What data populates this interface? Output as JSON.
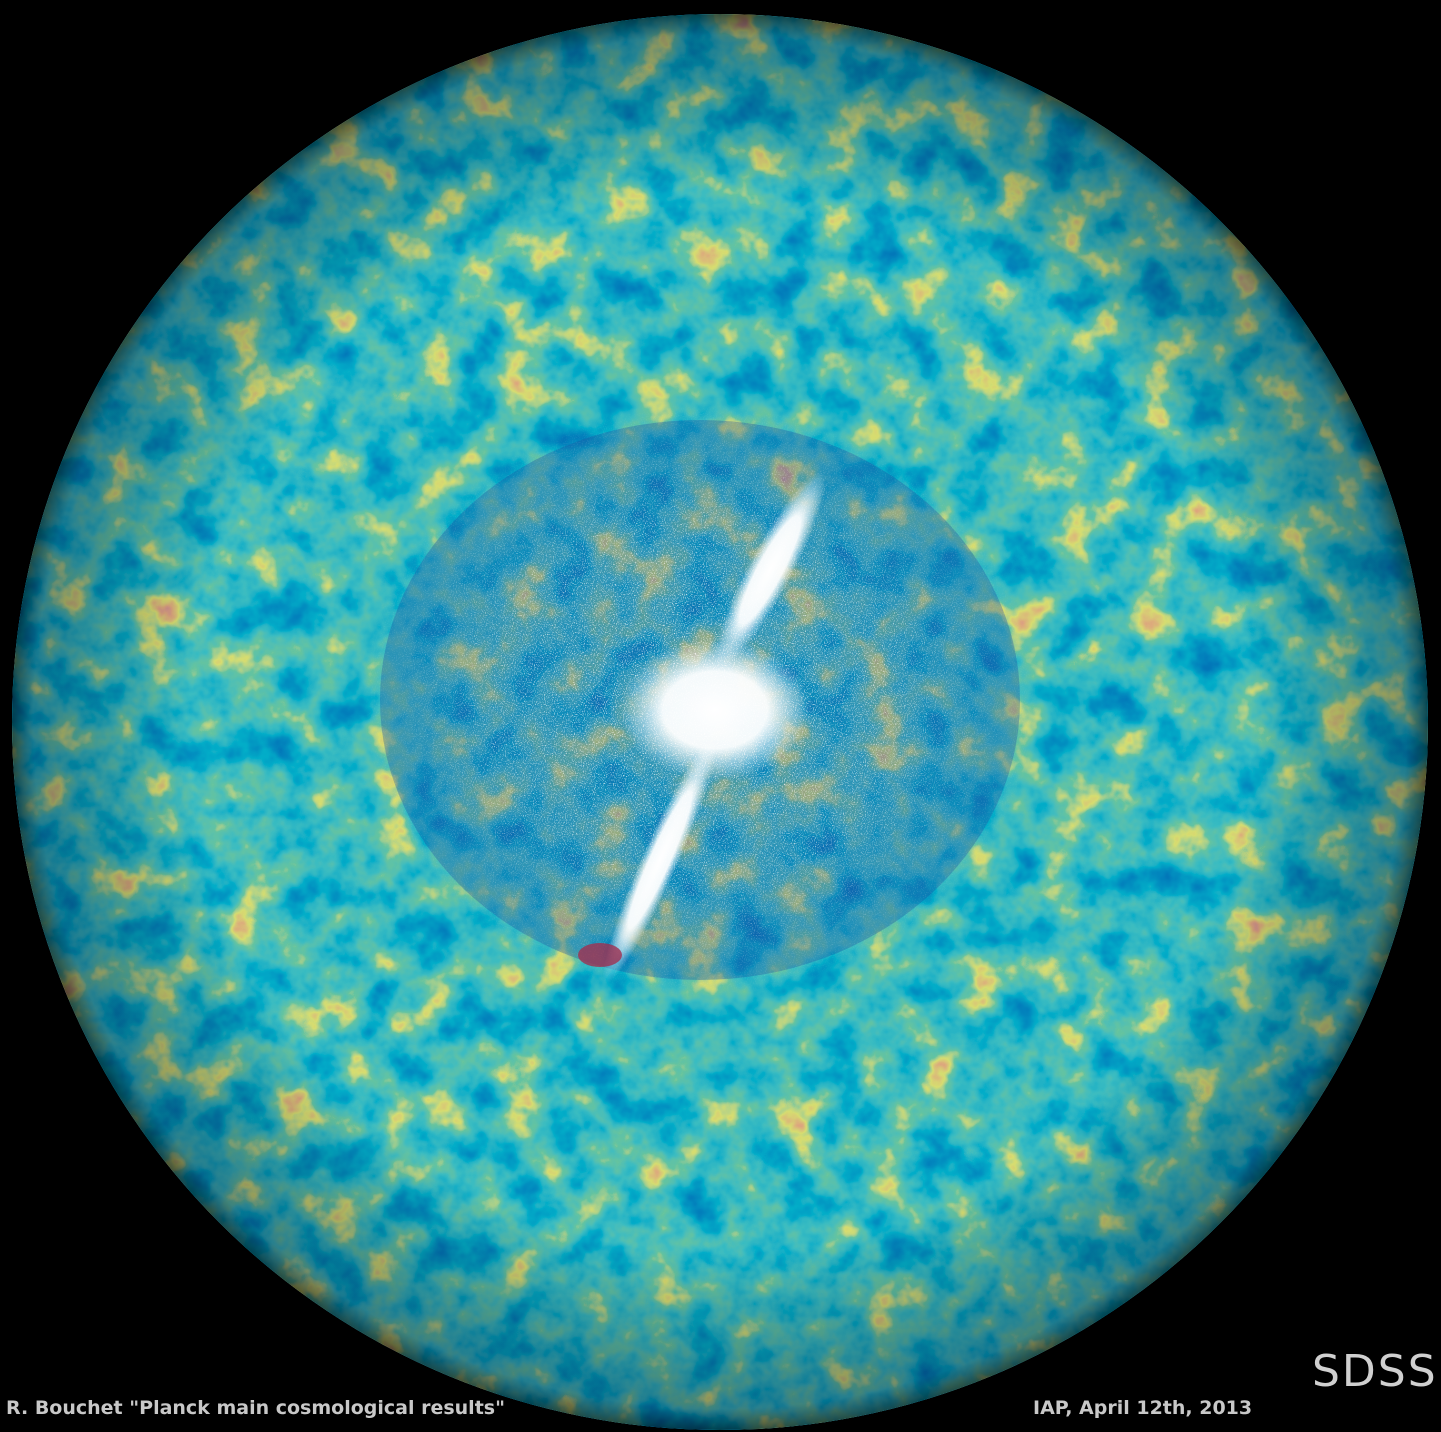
{
  "slide": {
    "label": "SDSS",
    "footer_left": "R. Bouchet \"Planck main cosmological results\"",
    "footer_right": "IAP, April 12th, 2013"
  }
}
